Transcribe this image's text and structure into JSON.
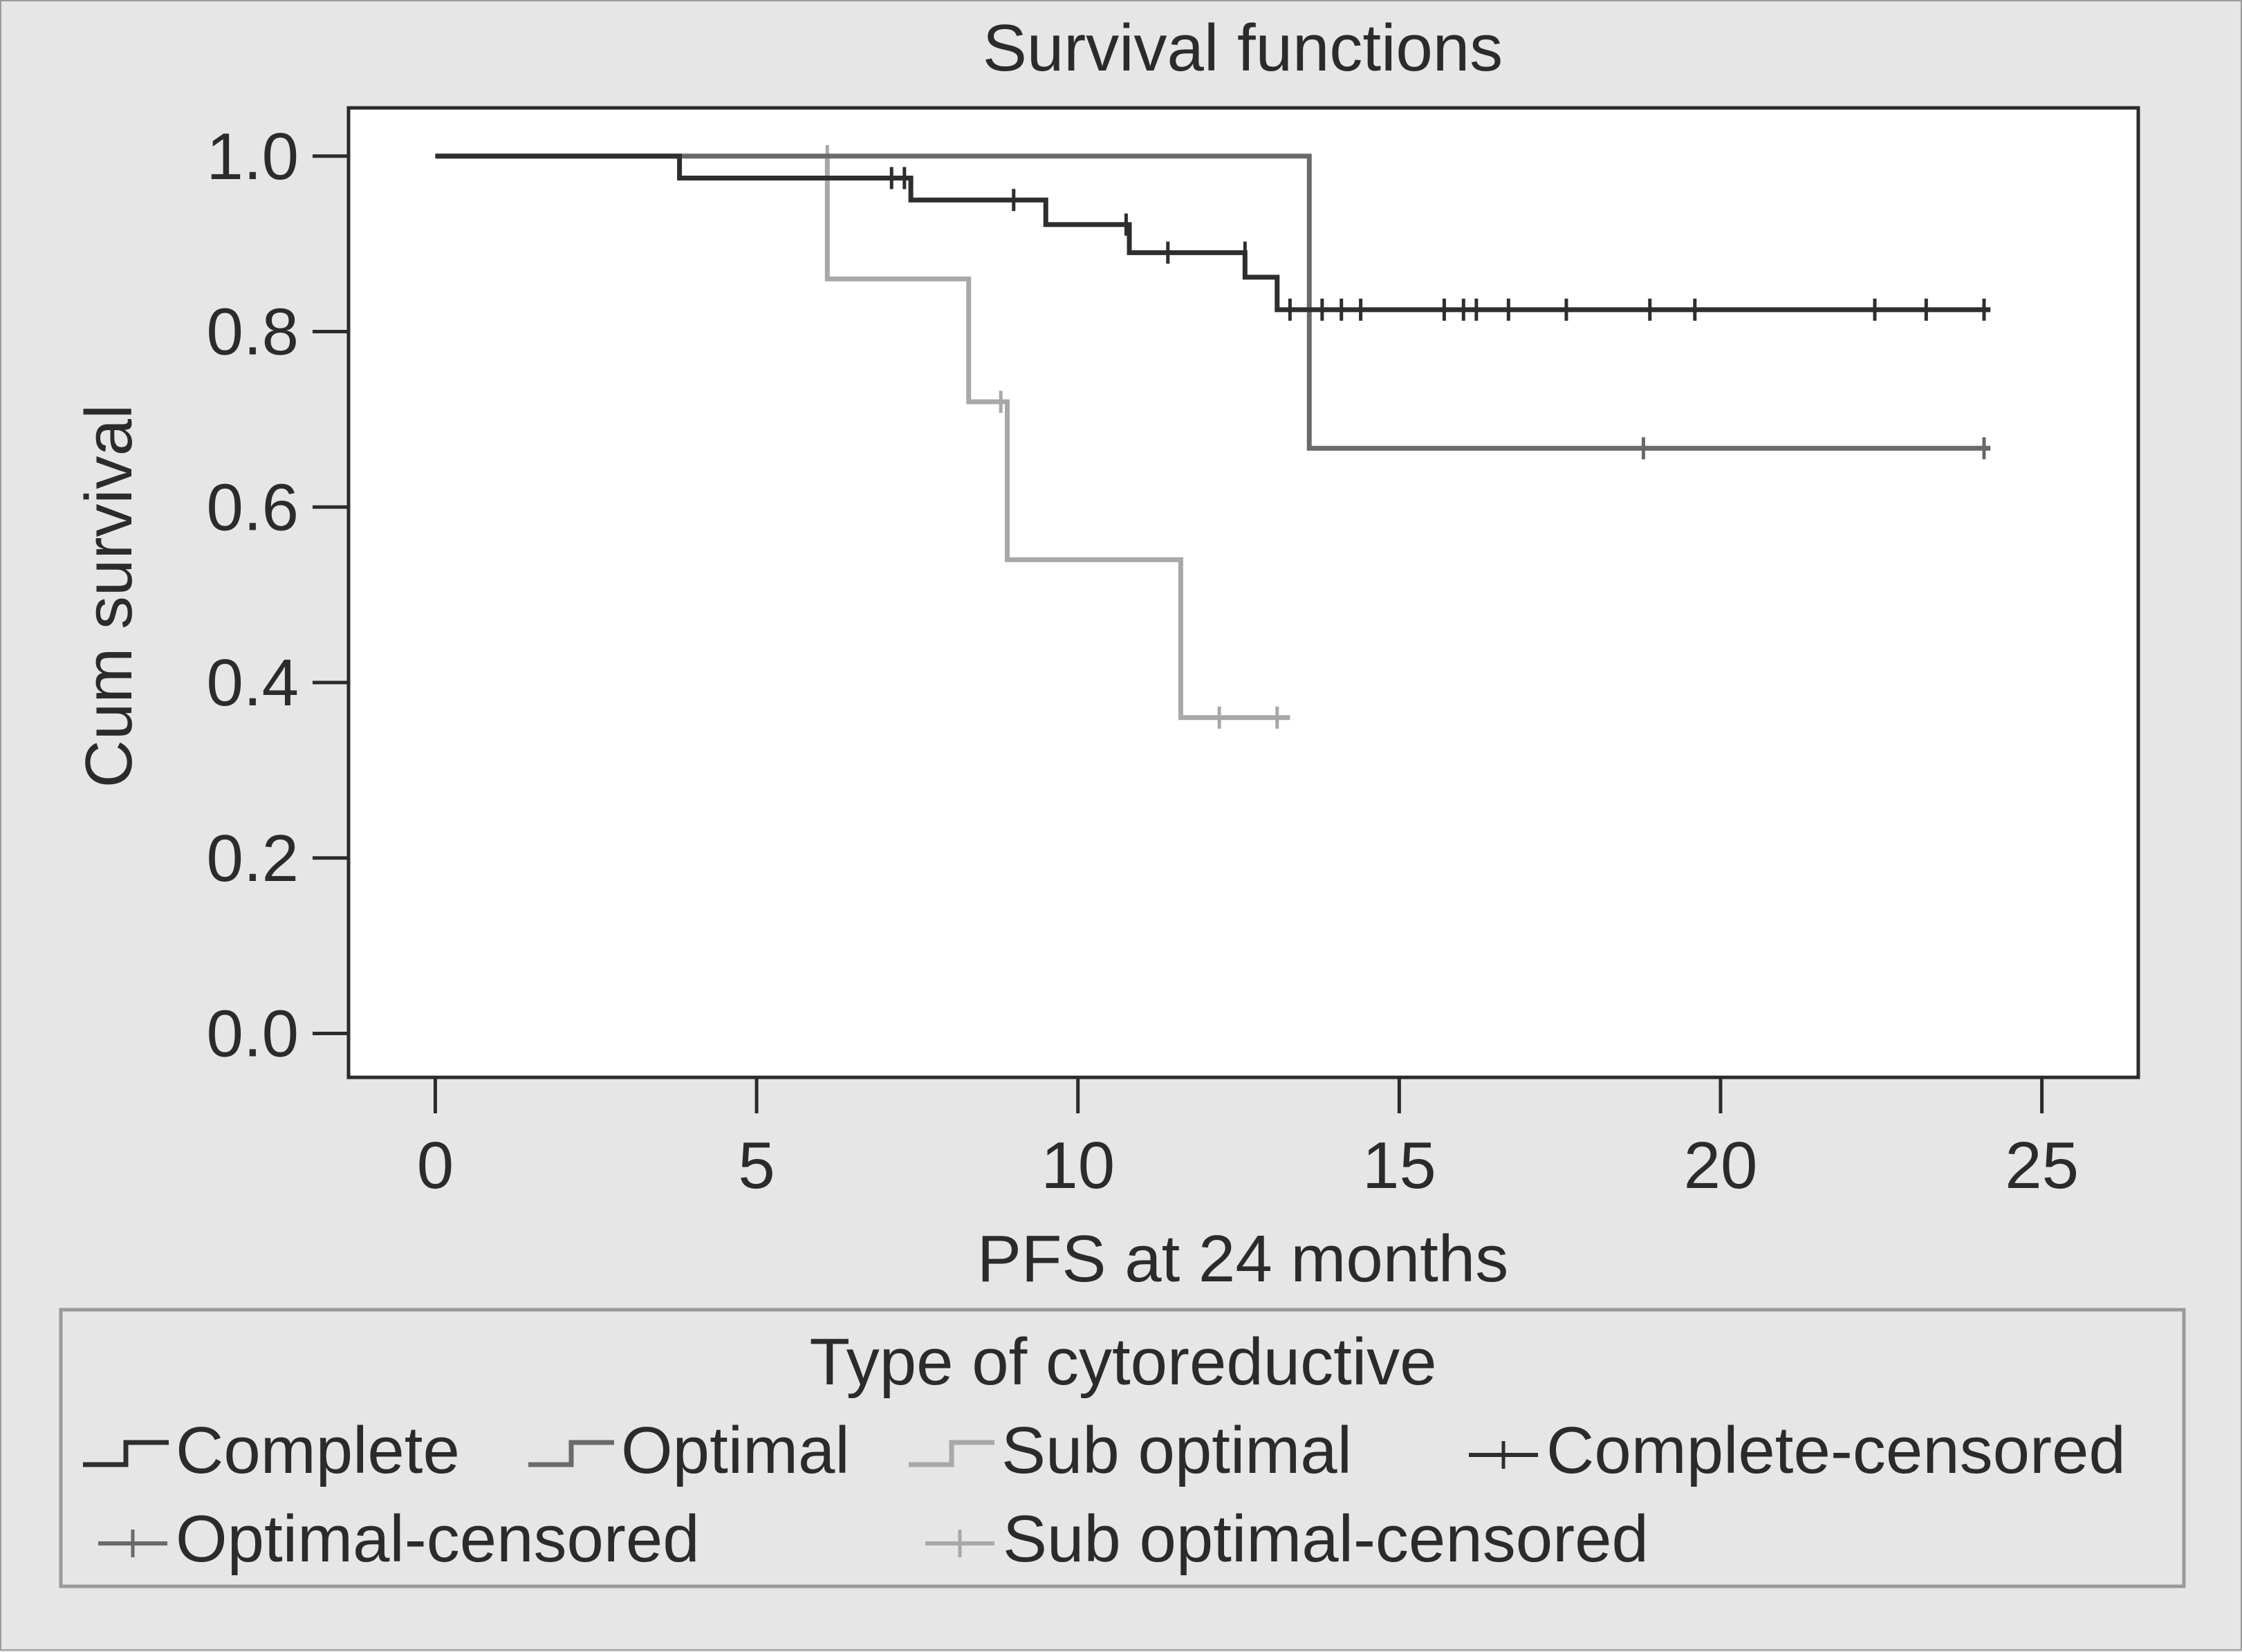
{
  "chart_data": {
    "type": "line",
    "title": "Survival functions",
    "xlabel": "PFS at 24 months",
    "ylabel": "Cum survival",
    "xlim": [
      -1.35,
      26.5
    ],
    "ylim": [
      -0.05,
      1.055
    ],
    "x_ticks": [
      0,
      5,
      10,
      15,
      20,
      25
    ],
    "x_tick_labels": [
      "0",
      "5",
      "10",
      "15",
      "20",
      "25"
    ],
    "y_ticks": [
      0.0,
      0.2,
      0.4,
      0.6,
      0.8,
      1.0
    ],
    "y_tick_labels": [
      "0.0",
      "0.2",
      "0.4",
      "0.6",
      "0.8",
      "1.0"
    ],
    "grid": false,
    "legend_placement": "bottom",
    "legend_title": "Type of cytoreductive",
    "series": [
      {
        "name": "Complete",
        "color": "#2e2e2e",
        "step_points": [
          [
            0,
            1.0
          ],
          [
            3.8,
            0.975
          ],
          [
            7.4,
            0.95
          ],
          [
            9.5,
            0.922
          ],
          [
            10.8,
            0.89
          ],
          [
            12.6,
            0.862
          ],
          [
            13.1,
            0.825
          ],
          [
            24.2,
            0.825
          ]
        ],
        "censored_name": "Complete-censored",
        "censored": [
          [
            7.1,
            0.975
          ],
          [
            7.3,
            0.975
          ],
          [
            7.4,
            0.962
          ],
          [
            9.0,
            0.95
          ],
          [
            10.75,
            0.922
          ],
          [
            11.4,
            0.89
          ],
          [
            12.6,
            0.89
          ],
          [
            13.3,
            0.825
          ],
          [
            13.8,
            0.825
          ],
          [
            14.1,
            0.825
          ],
          [
            14.4,
            0.825
          ],
          [
            15.7,
            0.825
          ],
          [
            16.0,
            0.825
          ],
          [
            16.2,
            0.825
          ],
          [
            16.7,
            0.825
          ],
          [
            17.6,
            0.825
          ],
          [
            18.9,
            0.825
          ],
          [
            19.6,
            0.825
          ],
          [
            22.4,
            0.825
          ],
          [
            23.2,
            0.825
          ],
          [
            24.1,
            0.825
          ]
        ]
      },
      {
        "name": "Optimal",
        "color": "#6a6a6a",
        "step_points": [
          [
            0,
            1.0
          ],
          [
            13.6,
            0.667
          ],
          [
            24.2,
            0.667
          ]
        ],
        "censored_name": "Optimal-censored",
        "censored": [
          [
            18.8,
            0.667
          ],
          [
            24.1,
            0.667
          ]
        ]
      },
      {
        "name": "Sub optimal",
        "color": "#a8a8a8",
        "step_points": [
          [
            0,
            1.0
          ],
          [
            6.1,
            0.86
          ],
          [
            8.3,
            0.72
          ],
          [
            8.9,
            0.54
          ],
          [
            11.6,
            0.36
          ],
          [
            13.3,
            0.36
          ]
        ],
        "censored_name": "Sub optimal-censored",
        "censored": [
          [
            6.1,
            1.0
          ],
          [
            8.8,
            0.72
          ],
          [
            12.2,
            0.36
          ],
          [
            13.1,
            0.36
          ]
        ]
      }
    ],
    "legend_entries": [
      "Complete",
      "Optimal",
      "Sub optimal",
      "Complete-censored",
      "Optimal-censored",
      "Sub optimal-censored"
    ]
  }
}
